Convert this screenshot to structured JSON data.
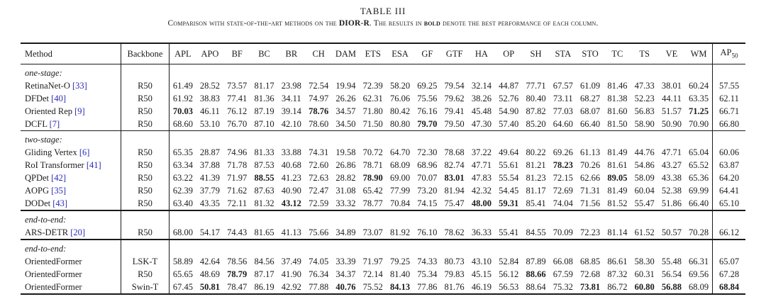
{
  "title": "TABLE III",
  "caption": {
    "parts": [
      {
        "text": "Comparison with state-of-the-art methods on the ",
        "bold": false
      },
      {
        "text": "DIOR-R",
        "bold": true
      },
      {
        "text": ". The results in ",
        "bold": false
      },
      {
        "text": "bold",
        "bold": true
      },
      {
        "text": " denote the best performance of each column.",
        "bold": false
      }
    ]
  },
  "colors": {
    "ref_blue": "#2a2ab5",
    "text": "#1c1c1c",
    "rule": "#1a1a1a"
  },
  "table": {
    "columns": [
      "Method",
      "Backbone",
      "APL",
      "APO",
      "BF",
      "BC",
      "BR",
      "CH",
      "DAM",
      "ETS",
      "ESA",
      "GF",
      "GTF",
      "HA",
      "OP",
      "SH",
      "STA",
      "STO",
      "TC",
      "TS",
      "VE",
      "WM"
    ],
    "ap50_label": {
      "base": "AP",
      "sub": "50"
    },
    "sections": [
      {
        "label": "one-stage:",
        "rows": [
          {
            "method": "RetinaNet-O",
            "ref": "[33]",
            "backbone": "R50",
            "values": [
              "61.49",
              "28.52",
              "73.57",
              "81.17",
              "23.98",
              "72.54",
              "19.94",
              "72.39",
              "58.20",
              "69.25",
              "79.54",
              "32.14",
              "44.87",
              "77.71",
              "67.57",
              "61.09",
              "81.46",
              "47.33",
              "38.01",
              "60.24"
            ],
            "bold": [],
            "ap50": "57.55",
            "ap50_bold": false
          },
          {
            "method": "DFDet",
            "ref": "[40]",
            "backbone": "R50",
            "values": [
              "61.92",
              "38.83",
              "77.41",
              "81.36",
              "34.11",
              "74.97",
              "26.26",
              "62.31",
              "76.06",
              "75.56",
              "79.62",
              "38.26",
              "52.76",
              "80.40",
              "73.11",
              "68.27",
              "81.38",
              "52.23",
              "44.11",
              "63.35"
            ],
            "bold": [],
            "ap50": "62.11",
            "ap50_bold": false
          },
          {
            "method": "Oriented Rep",
            "ref": "[9]",
            "backbone": "R50",
            "values": [
              "70.03",
              "46.11",
              "76.12",
              "87.19",
              "39.14",
              "78.76",
              "34.57",
              "71.80",
              "80.42",
              "76.16",
              "79.41",
              "45.48",
              "54.90",
              "87.82",
              "77.03",
              "68.07",
              "81.60",
              "56.83",
              "51.57",
              "71.25"
            ],
            "bold": [
              0,
              5,
              19
            ],
            "ap50": "66.71",
            "ap50_bold": false
          },
          {
            "method": "DCFL",
            "ref": "[7]",
            "backbone": "R50",
            "values": [
              "68.60",
              "53.10",
              "76.70",
              "87.10",
              "42.10",
              "78.60",
              "34.50",
              "71.50",
              "80.80",
              "79.70",
              "79.50",
              "47.30",
              "57.40",
              "85.20",
              "64.60",
              "66.40",
              "81.50",
              "58.90",
              "50.90",
              "70.90"
            ],
            "bold": [
              9
            ],
            "ap50": "66.80",
            "ap50_bold": false
          }
        ]
      },
      {
        "label": "two-stage:",
        "rows": [
          {
            "method": "Gliding Vertex",
            "ref": "[6]",
            "backbone": "R50",
            "values": [
              "65.35",
              "28.87",
              "74.96",
              "81.33",
              "33.88",
              "74.31",
              "19.58",
              "70.72",
              "64.70",
              "72.30",
              "78.68",
              "37.22",
              "49.64",
              "80.22",
              "69.26",
              "61.13",
              "81.49",
              "44.76",
              "47.71",
              "65.04"
            ],
            "bold": [],
            "ap50": "60.06",
            "ap50_bold": false
          },
          {
            "method": "RoI Transformer",
            "ref": "[41]",
            "backbone": "R50",
            "values": [
              "63.34",
              "37.88",
              "71.78",
              "87.53",
              "40.68",
              "72.60",
              "26.86",
              "78.71",
              "68.09",
              "68.96",
              "82.74",
              "47.71",
              "55.61",
              "81.21",
              "78.23",
              "70.26",
              "81.61",
              "54.86",
              "43.27",
              "65.52"
            ],
            "bold": [
              14
            ],
            "ap50": "63.87",
            "ap50_bold": false
          },
          {
            "method": "QPDet",
            "ref": "[42]",
            "backbone": "R50",
            "values": [
              "63.22",
              "41.39",
              "71.97",
              "88.55",
              "41.23",
              "72.63",
              "28.82",
              "78.90",
              "69.00",
              "70.07",
              "83.01",
              "47.83",
              "55.54",
              "81.23",
              "72.15",
              "62.66",
              "89.05",
              "58.09",
              "43.38",
              "65.36"
            ],
            "bold": [
              3,
              7,
              10,
              16
            ],
            "ap50": "64.20",
            "ap50_bold": false
          },
          {
            "method": "AOPG",
            "ref": "[35]",
            "backbone": "R50",
            "values": [
              "62.39",
              "37.79",
              "71.62",
              "87.63",
              "40.90",
              "72.47",
              "31.08",
              "65.42",
              "77.99",
              "73.20",
              "81.94",
              "42.32",
              "54.45",
              "81.17",
              "72.69",
              "71.31",
              "81.49",
              "60.04",
              "52.38",
              "69.99"
            ],
            "bold": [],
            "ap50": "64.41",
            "ap50_bold": false
          },
          {
            "method": "DODet",
            "ref": "[43]",
            "backbone": "R50",
            "values": [
              "63.40",
              "43.35",
              "72.11",
              "81.32",
              "43.12",
              "72.59",
              "33.32",
              "78.77",
              "70.84",
              "74.15",
              "75.47",
              "48.00",
              "59.31",
              "85.41",
              "74.04",
              "71.56",
              "81.52",
              "55.47",
              "51.86",
              "66.40"
            ],
            "bold": [
              4,
              11,
              12
            ],
            "ap50": "65.10",
            "ap50_bold": false
          }
        ]
      },
      {
        "label": "end-to-end:",
        "rows": [
          {
            "method": "ARS-DETR",
            "ref": "[20]",
            "backbone": "R50",
            "values": [
              "68.00",
              "54.17",
              "74.43",
              "81.65",
              "41.13",
              "75.66",
              "34.89",
              "73.07",
              "81.92",
              "76.10",
              "78.62",
              "36.33",
              "55.41",
              "84.55",
              "70.09",
              "72.23",
              "81.14",
              "61.52",
              "50.57",
              "70.28"
            ],
            "bold": [],
            "ap50": "66.12",
            "ap50_bold": false
          }
        ]
      },
      {
        "label": "end-to-end:",
        "rows": [
          {
            "method": "OrientedFormer",
            "ref": "",
            "backbone": "LSK-T",
            "values": [
              "58.89",
              "42.64",
              "78.56",
              "84.56",
              "37.49",
              "74.05",
              "33.39",
              "71.97",
              "79.25",
              "74.33",
              "80.73",
              "43.10",
              "52.84",
              "87.89",
              "66.08",
              "68.85",
              "86.61",
              "58.30",
              "55.48",
              "66.31"
            ],
            "bold": [],
            "ap50": "65.07",
            "ap50_bold": false
          },
          {
            "method": "OrientedFormer",
            "ref": "",
            "backbone": "R50",
            "values": [
              "65.65",
              "48.69",
              "78.79",
              "87.17",
              "41.90",
              "76.34",
              "34.37",
              "72.14",
              "81.40",
              "75.34",
              "79.83",
              "45.15",
              "56.12",
              "88.66",
              "67.59",
              "72.68",
              "87.32",
              "60.31",
              "56.54",
              "69.56"
            ],
            "bold": [
              2,
              13
            ],
            "ap50": "67.28",
            "ap50_bold": false
          },
          {
            "method": "OrientedFormer",
            "ref": "",
            "backbone": "Swin-T",
            "values": [
              "67.45",
              "50.81",
              "78.47",
              "86.19",
              "42.92",
              "77.88",
              "40.76",
              "75.52",
              "84.13",
              "77.86",
              "81.76",
              "46.19",
              "56.53",
              "88.64",
              "75.32",
              "73.81",
              "86.72",
              "60.80",
              "56.88",
              "68.09"
            ],
            "bold": [
              1,
              6,
              8,
              15,
              17,
              18
            ],
            "ap50": "68.84",
            "ap50_bold": true
          }
        ]
      }
    ]
  }
}
